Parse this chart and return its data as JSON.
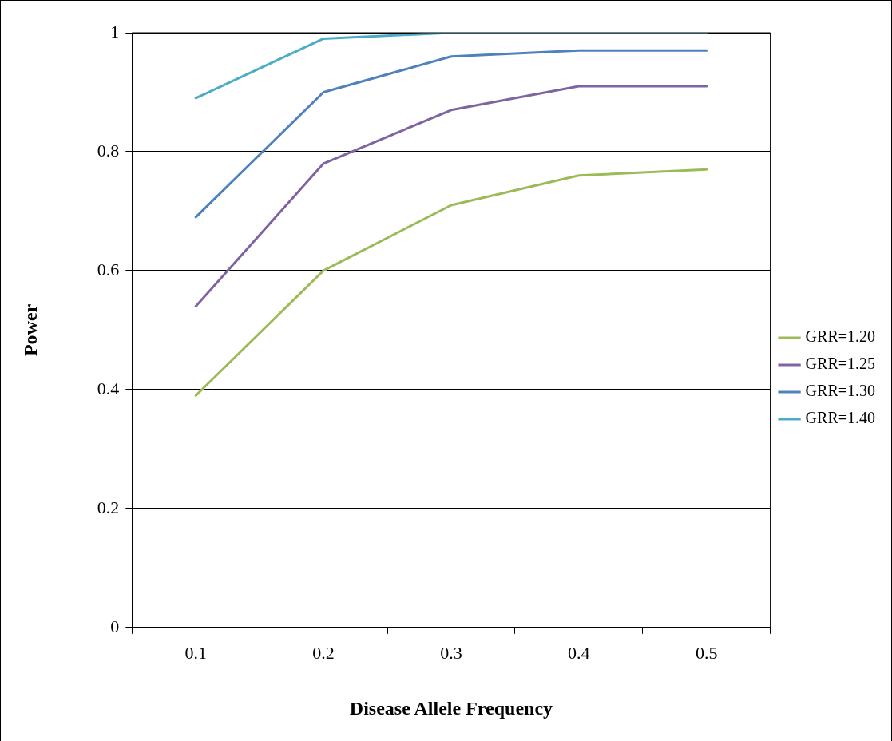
{
  "chart_data": {
    "type": "line",
    "xlabel": "Disease Allele Frequency",
    "ylabel": "Power",
    "categories": [
      "0.1",
      "0.2",
      "0.3",
      "0.4",
      "0.5"
    ],
    "series": [
      {
        "name": "GRR=1.20",
        "color": "#9bbb59",
        "values": [
          0.39,
          0.6,
          0.71,
          0.76,
          0.77
        ]
      },
      {
        "name": "GRR=1.25",
        "color": "#8064a2",
        "values": [
          0.54,
          0.78,
          0.87,
          0.91,
          0.91
        ]
      },
      {
        "name": "GRR=1.30",
        "color": "#4f81bd",
        "values": [
          0.69,
          0.9,
          0.96,
          0.97,
          0.97
        ]
      },
      {
        "name": "GRR=1.40",
        "color": "#4bacc6",
        "values": [
          0.89,
          0.99,
          1.0,
          1.0,
          1.0
        ]
      }
    ],
    "ylim": [
      0,
      1
    ],
    "yticks": [
      0,
      0.2,
      0.4,
      0.6,
      0.8,
      1
    ],
    "grid": "y",
    "legend": "right",
    "marker": "none",
    "line_style": "solid"
  }
}
